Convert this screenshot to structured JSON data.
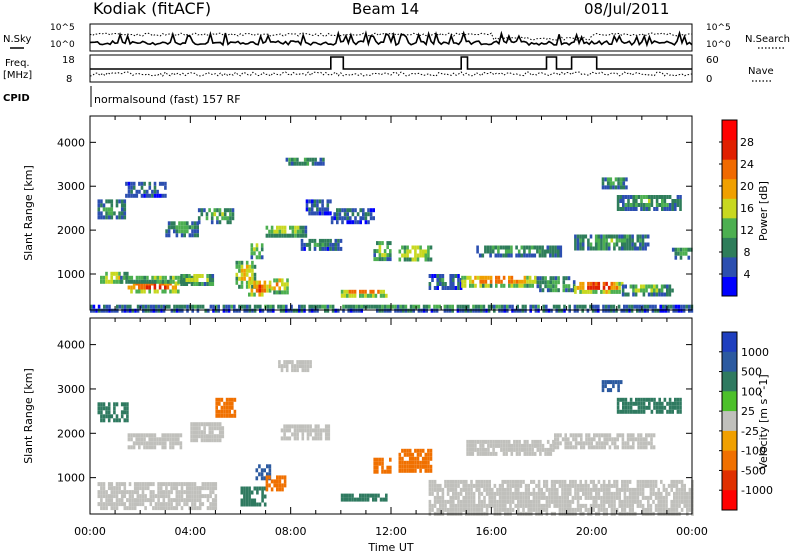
{
  "header": {
    "station": "Kodiak (fitACF)",
    "beam": "Beam 14",
    "date": "08/Jul/2011"
  },
  "panels": {
    "nsky_label": "N.Sky",
    "nsearch_label": "N.Search",
    "freq_label_1": "Freq.",
    "freq_label_2": "[MHz]",
    "nave_label": "Nave",
    "cpid_label": "CPID",
    "cpid_value": "normalsound (fast) 157 RF",
    "nsky_ticks": [
      "10^5",
      "10^0"
    ],
    "nsearch_ticks": [
      "10^5",
      "10^0"
    ],
    "freq_ticks": [
      "18",
      "8"
    ],
    "nave_ticks": [
      "60",
      "0"
    ]
  },
  "colors": {
    "power_scale": [
      "#0000ff",
      "#2c4fb0",
      "#2e7d5a",
      "#4caf50",
      "#c8d820",
      "#f0a000",
      "#f06a00",
      "#e02000",
      "#ff0000"
    ],
    "velocity_scale": [
      "#1f3fbf",
      "#2c5aa0",
      "#2f7a60",
      "#4cc02a",
      "#c0c0bc",
      "#f0a000",
      "#f07000",
      "#e03000",
      "#ff0000"
    ]
  },
  "chart_data": [
    {
      "type": "heatmap",
      "title": "",
      "xlabel": "",
      "ylabel": "Slant Range [km]",
      "x_ticks": [
        "00:00",
        "04:00",
        "08:00",
        "12:00",
        "16:00",
        "20:00",
        "00:00"
      ],
      "xlim": [
        0,
        24
      ],
      "ylim": [
        180,
        4600
      ],
      "y_ticks": [
        1000,
        2000,
        3000,
        4000
      ],
      "colorbar": {
        "label": "Power [dB]",
        "ticks": [
          4,
          8,
          12,
          16,
          20,
          24,
          28
        ],
        "range": [
          0,
          32
        ]
      },
      "regions": [
        {
          "t0": 0.0,
          "t1": 24.0,
          "r0": 200,
          "r1": 300,
          "value": 10
        },
        {
          "t0": 0.4,
          "t1": 1.5,
          "r0": 800,
          "r1": 1050,
          "value": 18
        },
        {
          "t0": 1.5,
          "t1": 3.6,
          "r0": 620,
          "r1": 830,
          "value": 28
        },
        {
          "t0": 1.2,
          "t1": 4.2,
          "r0": 820,
          "r1": 960,
          "value": 14
        },
        {
          "t0": 3.6,
          "t1": 4.9,
          "r0": 780,
          "r1": 1000,
          "value": 16
        },
        {
          "t0": 5.8,
          "t1": 6.6,
          "r0": 700,
          "r1": 1300,
          "value": 18
        },
        {
          "t0": 6.3,
          "t1": 7.2,
          "r0": 500,
          "r1": 850,
          "value": 24
        },
        {
          "t0": 6.4,
          "t1": 6.9,
          "r0": 1350,
          "r1": 1700,
          "value": 16
        },
        {
          "t0": 7.2,
          "t1": 7.9,
          "r0": 600,
          "r1": 900,
          "value": 20
        },
        {
          "t0": 0.3,
          "t1": 1.4,
          "r0": 2300,
          "r1": 2700,
          "value": 10
        },
        {
          "t0": 1.4,
          "t1": 3.0,
          "r0": 2800,
          "r1": 3100,
          "value": 8
        },
        {
          "t0": 3.0,
          "t1": 4.3,
          "r0": 1900,
          "r1": 2200,
          "value": 12
        },
        {
          "t0": 4.3,
          "t1": 5.7,
          "r0": 2200,
          "r1": 2500,
          "value": 13
        },
        {
          "t0": 7.0,
          "t1": 8.6,
          "r0": 1900,
          "r1": 2100,
          "value": 16
        },
        {
          "t0": 8.4,
          "t1": 10.0,
          "r0": 1600,
          "r1": 1800,
          "value": 10
        },
        {
          "t0": 8.6,
          "t1": 9.6,
          "r0": 2400,
          "r1": 2700,
          "value": 8
        },
        {
          "t0": 9.6,
          "t1": 11.3,
          "r0": 2200,
          "r1": 2500,
          "value": 8
        },
        {
          "t0": 7.8,
          "t1": 9.3,
          "r0": 3500,
          "r1": 3650,
          "value": 12
        },
        {
          "t0": 10.0,
          "t1": 11.8,
          "r0": 540,
          "r1": 640,
          "value": 24
        },
        {
          "t0": 11.3,
          "t1": 12.0,
          "r0": 1350,
          "r1": 1750,
          "value": 16
        },
        {
          "t0": 12.3,
          "t1": 13.6,
          "r0": 1300,
          "r1": 1650,
          "value": 18
        },
        {
          "t0": 13.5,
          "t1": 14.8,
          "r0": 700,
          "r1": 1000,
          "value": 8
        },
        {
          "t0": 14.8,
          "t1": 17.8,
          "r0": 760,
          "r1": 960,
          "value": 24
        },
        {
          "t0": 15.4,
          "t1": 18.8,
          "r0": 1450,
          "r1": 1650,
          "value": 12
        },
        {
          "t0": 17.8,
          "t1": 19.3,
          "r0": 600,
          "r1": 950,
          "value": 12
        },
        {
          "t0": 19.3,
          "t1": 21.2,
          "r0": 620,
          "r1": 820,
          "value": 28
        },
        {
          "t0": 21.2,
          "t1": 23.2,
          "r0": 560,
          "r1": 760,
          "value": 14
        },
        {
          "t0": 19.3,
          "t1": 22.3,
          "r0": 1550,
          "r1": 1900,
          "value": 12
        },
        {
          "t0": 21.0,
          "t1": 23.5,
          "r0": 2500,
          "r1": 2800,
          "value": 12
        },
        {
          "t0": 23.2,
          "t1": 24.0,
          "r0": 1400,
          "r1": 1600,
          "value": 12
        },
        {
          "t0": 20.4,
          "t1": 21.4,
          "r0": 3000,
          "r1": 3200,
          "value": 12
        }
      ]
    },
    {
      "type": "heatmap",
      "title": "",
      "xlabel": "Time UT",
      "ylabel": "Slant Range [km]",
      "x_ticks": [
        "00:00",
        "04:00",
        "08:00",
        "12:00",
        "16:00",
        "20:00",
        "00:00"
      ],
      "xlim": [
        0,
        24
      ],
      "ylim": [
        180,
        4600
      ],
      "y_ticks": [
        1000,
        2000,
        3000,
        4000
      ],
      "colorbar": {
        "label": "Velocity [m s^-1]",
        "tick_labels": [
          "1000",
          "500",
          "100",
          "25",
          "-25",
          "-100",
          "-500",
          "-1000"
        ]
      },
      "regions": [
        {
          "t0": 0.3,
          "t1": 5.0,
          "r0": 300,
          "r1": 900,
          "value": 0
        },
        {
          "t0": 0.3,
          "t1": 1.5,
          "r0": 2300,
          "r1": 2700,
          "value": 150
        },
        {
          "t0": 1.5,
          "t1": 3.6,
          "r0": 1700,
          "r1": 2000,
          "value": 0
        },
        {
          "t0": 4.0,
          "t1": 5.3,
          "r0": 1850,
          "r1": 2250,
          "value": 0
        },
        {
          "t0": 5.0,
          "t1": 5.8,
          "r0": 2400,
          "r1": 2800,
          "value": -150
        },
        {
          "t0": 6.0,
          "t1": 7.0,
          "r0": 400,
          "r1": 800,
          "value": 150
        },
        {
          "t0": 6.6,
          "t1": 7.2,
          "r0": 1000,
          "r1": 1300,
          "value": 600
        },
        {
          "t0": 7.0,
          "t1": 7.8,
          "r0": 700,
          "r1": 1050,
          "value": -150
        },
        {
          "t0": 7.5,
          "t1": 9.5,
          "r0": 1900,
          "r1": 2200,
          "value": 0
        },
        {
          "t0": 7.5,
          "t1": 8.8,
          "r0": 3400,
          "r1": 3650,
          "value": 0
        },
        {
          "t0": 10.0,
          "t1": 11.8,
          "r0": 540,
          "r1": 640,
          "value": 150
        },
        {
          "t0": 11.3,
          "t1": 12.0,
          "r0": 1150,
          "r1": 1450,
          "value": -150
        },
        {
          "t0": 12.3,
          "t1": 13.6,
          "r0": 1150,
          "r1": 1650,
          "value": -150
        },
        {
          "t0": 13.5,
          "t1": 24.0,
          "r0": 200,
          "r1": 950,
          "value": 0
        },
        {
          "t0": 15.0,
          "t1": 18.5,
          "r0": 1550,
          "r1": 1850,
          "value": 0
        },
        {
          "t0": 18.5,
          "t1": 22.5,
          "r0": 1700,
          "r1": 2000,
          "value": 0
        },
        {
          "t0": 21.0,
          "t1": 23.5,
          "r0": 2500,
          "r1": 2800,
          "value": 150
        },
        {
          "t0": 20.4,
          "t1": 21.2,
          "r0": 3000,
          "r1": 3200,
          "value": 600
        }
      ]
    }
  ]
}
